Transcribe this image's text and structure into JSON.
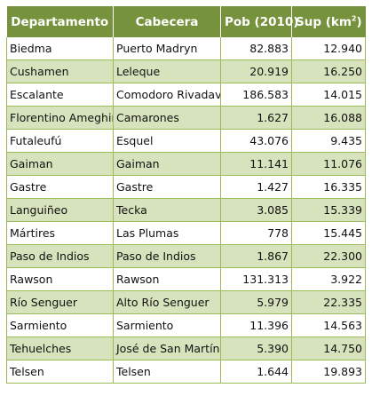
{
  "colors": {
    "header_bg": "#76923c",
    "header_text": "#ffffff",
    "band_bg": "#d6e3bc",
    "plain_bg": "#ffffff",
    "border": "#9bbb59"
  },
  "table": {
    "headers": {
      "departamento": "Departamento",
      "cabecera": "Cabecera",
      "poblacion": "Pob (2010)",
      "superficie": "Sup (km",
      "superficie_sup": "2",
      "superficie_end": ")"
    },
    "rows": [
      {
        "departamento": "Biedma",
        "cabecera": "Puerto Madryn",
        "poblacion": "82.883",
        "superficie": "12.940"
      },
      {
        "departamento": "Cushamen",
        "cabecera": "Leleque",
        "poblacion": "20.919",
        "superficie": "16.250"
      },
      {
        "departamento": "Escalante",
        "cabecera": "Comodoro Rivadavia",
        "poblacion": "186.583",
        "superficie": "14.015"
      },
      {
        "departamento": "Florentino Ameghino",
        "cabecera": "Camarones",
        "poblacion": "1.627",
        "superficie": "16.088"
      },
      {
        "departamento": "Futaleufú",
        "cabecera": "Esquel",
        "poblacion": "43.076",
        "superficie": "9.435"
      },
      {
        "departamento": "Gaiman",
        "cabecera": "Gaiman",
        "poblacion": "11.141",
        "superficie": "11.076"
      },
      {
        "departamento": "Gastre",
        "cabecera": "Gastre",
        "poblacion": "1.427",
        "superficie": "16.335"
      },
      {
        "departamento": "Languiñeo",
        "cabecera": "Tecka",
        "poblacion": "3.085",
        "superficie": "15.339"
      },
      {
        "departamento": "Mártires",
        "cabecera": "Las Plumas",
        "poblacion": "778",
        "superficie": "15.445"
      },
      {
        "departamento": "Paso de Indios",
        "cabecera": "Paso de Indios",
        "poblacion": "1.867",
        "superficie": "22.300"
      },
      {
        "departamento": "Rawson",
        "cabecera": "Rawson",
        "poblacion": "131.313",
        "superficie": "3.922"
      },
      {
        "departamento": "Río Senguer",
        "cabecera": "Alto Río Senguer",
        "poblacion": "5.979",
        "superficie": "22.335"
      },
      {
        "departamento": "Sarmiento",
        "cabecera": "Sarmiento",
        "poblacion": "11.396",
        "superficie": "14.563"
      },
      {
        "departamento": "Tehuelches",
        "cabecera": "José de San Martín",
        "poblacion": "5.390",
        "superficie": "14.750"
      },
      {
        "departamento": "Telsen",
        "cabecera": "Telsen",
        "poblacion": "1.644",
        "superficie": "19.893"
      }
    ]
  }
}
